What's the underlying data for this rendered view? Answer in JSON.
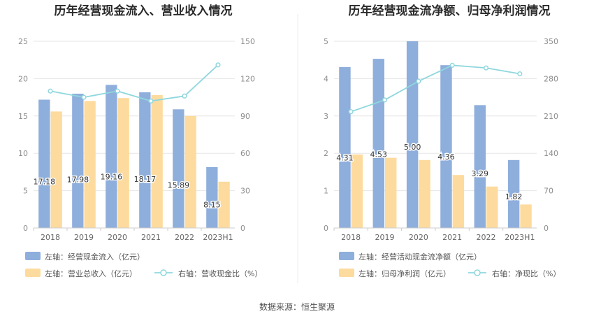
{
  "source": "数据来源：恒生聚源",
  "chart_data": [
    {
      "type": "bar+line",
      "title": "历年经营现金流入、营业收入情况",
      "categories": [
        "2018",
        "2019",
        "2020",
        "2021",
        "2022",
        "2023H1"
      ],
      "left_axis": {
        "min": 0,
        "max": 25,
        "ticks": [
          0,
          5,
          10,
          15,
          20,
          25
        ]
      },
      "right_axis": {
        "min": 0,
        "max": 150,
        "ticks": [
          0,
          30,
          60,
          90,
          120,
          150
        ]
      },
      "series": [
        {
          "name": "左轴：经营现金流入（亿元）",
          "type": "bar",
          "axis": "left",
          "color": "#8eaedc",
          "values": [
            17.18,
            17.98,
            19.16,
            18.17,
            15.89,
            8.15
          ],
          "labels": [
            "17.18",
            "17.98",
            "19.16",
            "18.17",
            "15.89",
            "8.15"
          ]
        },
        {
          "name": "左轴：营业总收入（亿元）",
          "type": "bar",
          "axis": "left",
          "color": "#fddb9e",
          "values": [
            15.6,
            17.0,
            17.4,
            17.8,
            15.0,
            6.2
          ]
        },
        {
          "name": "右轴：营收现金比（%）",
          "type": "line",
          "axis": "right",
          "color": "#8fd7dd",
          "values": [
            110,
            105,
            110,
            102,
            106,
            131
          ]
        }
      ]
    },
    {
      "type": "bar+line",
      "title": "历年经营现金流净额、归母净利润情况",
      "categories": [
        "2018",
        "2019",
        "2020",
        "2021",
        "2022",
        "2023H1"
      ],
      "left_axis": {
        "min": 0,
        "max": 5,
        "ticks": [
          0,
          1,
          2,
          3,
          4,
          5
        ]
      },
      "right_axis": {
        "min": 0,
        "max": 350,
        "ticks": [
          0,
          70,
          140,
          210,
          280,
          350
        ]
      },
      "series": [
        {
          "name": "左轴：经营活动现金流净额（亿元）",
          "type": "bar",
          "axis": "left",
          "color": "#8eaedc",
          "values": [
            4.31,
            4.53,
            5.0,
            4.36,
            3.29,
            1.82
          ],
          "labels": [
            "4.31",
            "4.53",
            "5.00",
            "4.36",
            "3.29",
            "1.82"
          ]
        },
        {
          "name": "左轴：归母净利润（亿元）",
          "type": "bar",
          "axis": "left",
          "color": "#fddb9e",
          "values": [
            1.97,
            1.88,
            1.82,
            1.42,
            1.11,
            0.63
          ]
        },
        {
          "name": "右轴：净现比（%）",
          "type": "line",
          "axis": "right",
          "color": "#8fd7dd",
          "values": [
            218,
            240,
            275,
            305,
            300,
            289
          ]
        }
      ]
    }
  ]
}
